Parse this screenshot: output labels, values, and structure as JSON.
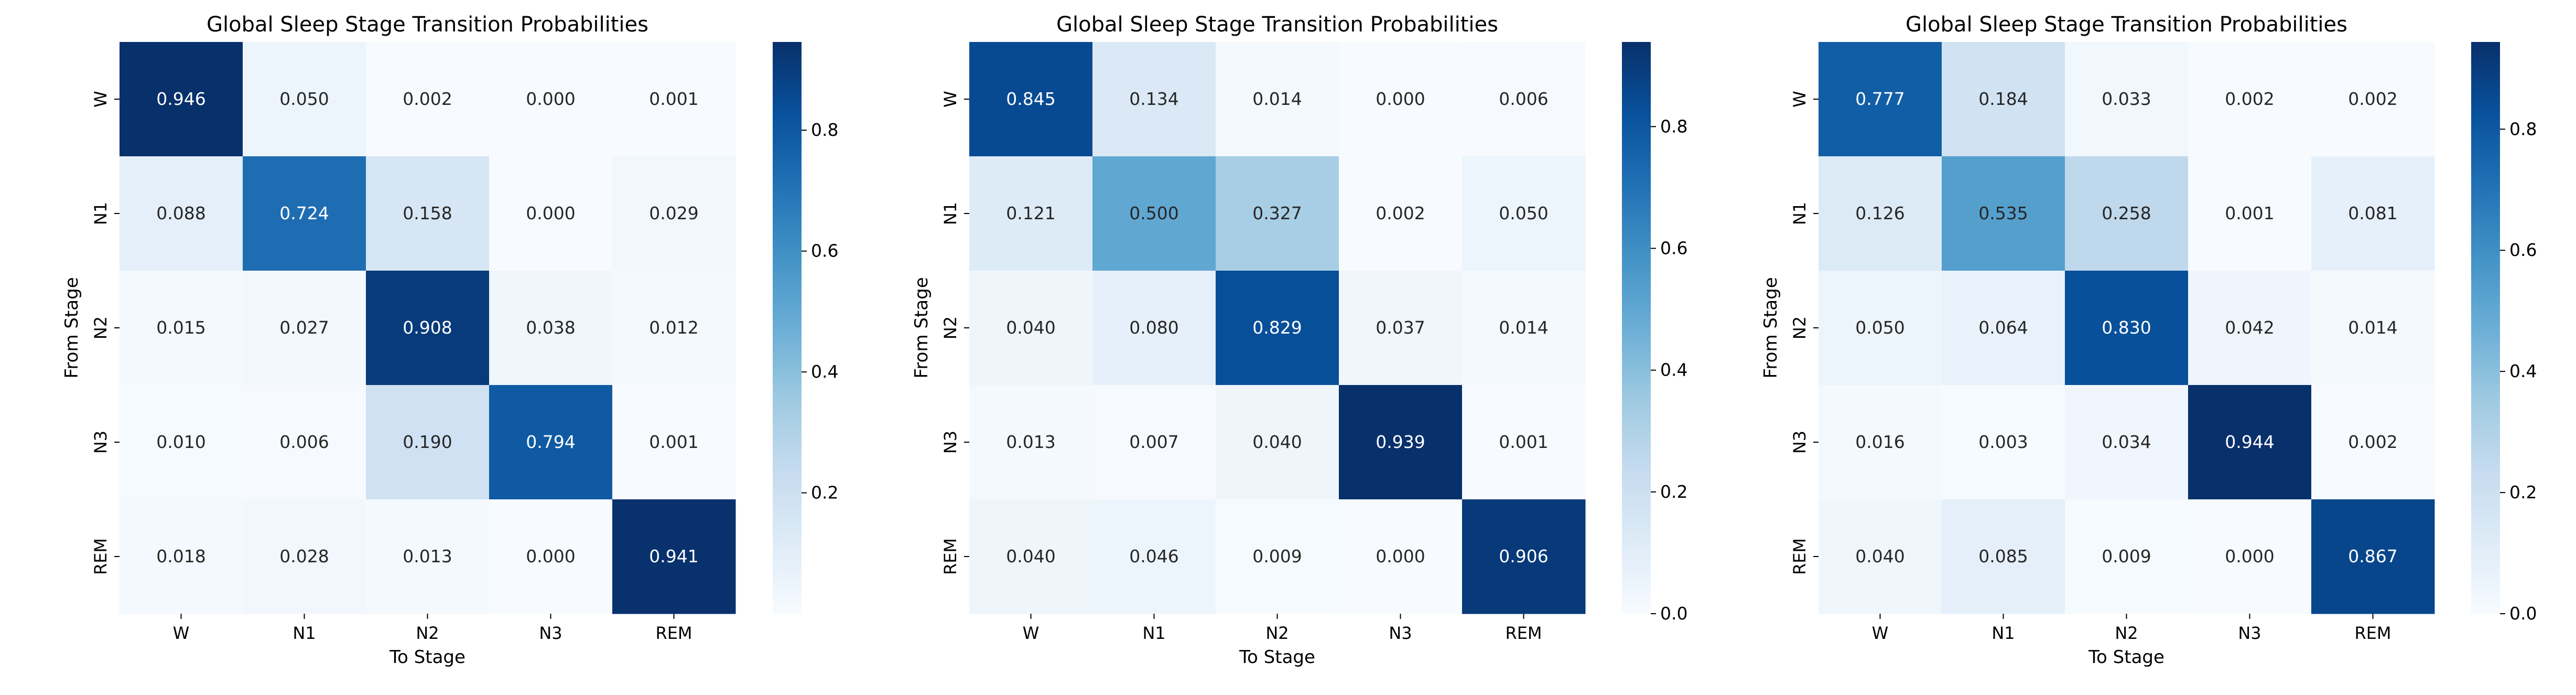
{
  "colormap": [
    "#f7fbff",
    "#deebf7",
    "#c6dbef",
    "#9ecae1",
    "#6baed6",
    "#4292c6",
    "#2171b5",
    "#08519c",
    "#08306b"
  ],
  "chart_data": [
    {
      "type": "heatmap",
      "title": "Global Sleep Stage Transition Probabilities",
      "xlabel": "To Stage",
      "ylabel": "From Stage",
      "x_categories": [
        "W",
        "N1",
        "N2",
        "N3",
        "REM"
      ],
      "y_categories": [
        "W",
        "N1",
        "N2",
        "N3",
        "REM"
      ],
      "values": [
        [
          0.946,
          0.05,
          0.002,
          0.0,
          0.001
        ],
        [
          0.088,
          0.724,
          0.158,
          0.0,
          0.029
        ],
        [
          0.015,
          0.027,
          0.908,
          0.038,
          0.012
        ],
        [
          0.01,
          0.006,
          0.19,
          0.794,
          0.001
        ],
        [
          0.018,
          0.028,
          0.013,
          0.0,
          0.941
        ]
      ],
      "value_labels": [
        [
          "0.946",
          "0.050",
          "0.002",
          "0.000",
          "0.001"
        ],
        [
          "0.088",
          "0.724",
          "0.158",
          "0.000",
          "0.029"
        ],
        [
          "0.015",
          "0.027",
          "0.908",
          "0.038",
          "0.012"
        ],
        [
          "0.010",
          "0.006",
          "0.190",
          "0.794",
          "0.001"
        ],
        [
          "0.018",
          "0.028",
          "0.013",
          "0.000",
          "0.941"
        ]
      ],
      "colorbar": {
        "range": [
          0.0,
          0.946
        ],
        "ticks": [
          0.2,
          0.4,
          0.6,
          0.8
        ],
        "tick_labels": [
          "0.2",
          "0.4",
          "0.6",
          "0.8"
        ]
      }
    },
    {
      "type": "heatmap",
      "title": "Global Sleep Stage Transition Probabilities",
      "xlabel": "To Stage",
      "ylabel": "From Stage",
      "x_categories": [
        "W",
        "N1",
        "N2",
        "N3",
        "REM"
      ],
      "y_categories": [
        "W",
        "N1",
        "N2",
        "N3",
        "REM"
      ],
      "values": [
        [
          0.845,
          0.134,
          0.014,
          0.0,
          0.006
        ],
        [
          0.121,
          0.5,
          0.327,
          0.002,
          0.05
        ],
        [
          0.04,
          0.08,
          0.829,
          0.037,
          0.014
        ],
        [
          0.013,
          0.007,
          0.04,
          0.939,
          0.001
        ],
        [
          0.04,
          0.046,
          0.009,
          0.0,
          0.906
        ]
      ],
      "value_labels": [
        [
          "0.845",
          "0.134",
          "0.014",
          "0.000",
          "0.006"
        ],
        [
          "0.121",
          "0.500",
          "0.327",
          "0.002",
          "0.050"
        ],
        [
          "0.040",
          "0.080",
          "0.829",
          "0.037",
          "0.014"
        ],
        [
          "0.013",
          "0.007",
          "0.040",
          "0.939",
          "0.001"
        ],
        [
          "0.040",
          "0.046",
          "0.009",
          "0.000",
          "0.906"
        ]
      ],
      "colorbar": {
        "range": [
          0.0,
          0.939
        ],
        "ticks": [
          0.0,
          0.2,
          0.4,
          0.6,
          0.8
        ],
        "tick_labels": [
          "0.0",
          "0.2",
          "0.4",
          "0.6",
          "0.8"
        ]
      }
    },
    {
      "type": "heatmap",
      "title": "Global Sleep Stage Transition Probabilities",
      "xlabel": "To Stage",
      "ylabel": "From Stage",
      "x_categories": [
        "W",
        "N1",
        "N2",
        "N3",
        "REM"
      ],
      "y_categories": [
        "W",
        "N1",
        "N2",
        "N3",
        "REM"
      ],
      "values": [
        [
          0.777,
          0.184,
          0.033,
          0.002,
          0.002
        ],
        [
          0.126,
          0.535,
          0.258,
          0.001,
          0.081
        ],
        [
          0.05,
          0.064,
          0.83,
          0.042,
          0.014
        ],
        [
          0.016,
          0.003,
          0.034,
          0.944,
          0.002
        ],
        [
          0.04,
          0.085,
          0.009,
          0.0,
          0.867
        ]
      ],
      "value_labels": [
        [
          "0.777",
          "0.184",
          "0.033",
          "0.002",
          "0.002"
        ],
        [
          "0.126",
          "0.535",
          "0.258",
          "0.001",
          "0.081"
        ],
        [
          "0.050",
          "0.064",
          "0.830",
          "0.042",
          "0.014"
        ],
        [
          "0.016",
          "0.003",
          "0.034",
          "0.944",
          "0.002"
        ],
        [
          "0.040",
          "0.085",
          "0.009",
          "0.000",
          "0.867"
        ]
      ],
      "colorbar": {
        "range": [
          0.0,
          0.944
        ],
        "ticks": [
          0.0,
          0.2,
          0.4,
          0.6,
          0.8
        ],
        "tick_labels": [
          "0.0",
          "0.2",
          "0.4",
          "0.6",
          "0.8"
        ]
      }
    }
  ]
}
